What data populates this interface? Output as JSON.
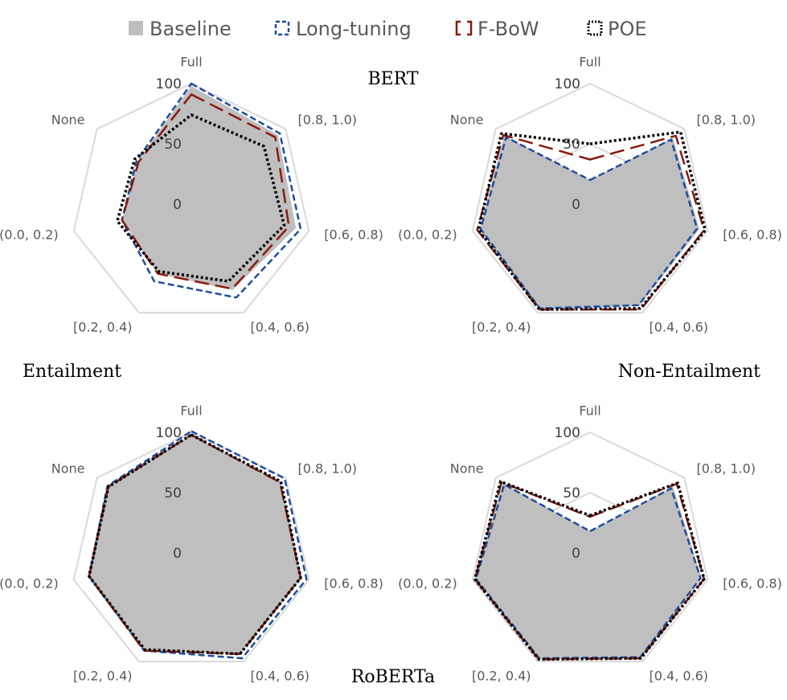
{
  "legend": [
    {
      "name": "Baseline",
      "style": "fill",
      "color": "#bfbfbf"
    },
    {
      "name": "Long-tuning",
      "style": "dash",
      "color": "#1f4e9c"
    },
    {
      "name": "F-BoW",
      "style": "longdash",
      "color": "#8b1a0e"
    },
    {
      "name": "POE",
      "style": "dot",
      "color": "#000000"
    }
  ],
  "labels": {
    "bert": "BERT",
    "roberta": "RoBERTa",
    "entailment": "Entailment",
    "non_entailment": "Non-Entailment"
  },
  "chart_data": [
    {
      "type": "radar",
      "model": "BERT",
      "class": "Entailment",
      "axes": [
        "Full",
        "[0.8, 1.0)",
        "[0.6, 0.8)",
        "[0.4, 0.6)",
        "[0.2, 0.4)",
        "(0.0, 0.2)",
        "None"
      ],
      "rlim": [
        0,
        100
      ],
      "ticks": [
        "0",
        "50",
        "100"
      ],
      "series": [
        {
          "name": "Baseline",
          "values": [
            98,
            92,
            89,
            79,
            64,
            59,
            57
          ]
        },
        {
          "name": "Long-tuning",
          "values": [
            100,
            94,
            93,
            86,
            71,
            59,
            58
          ]
        },
        {
          "name": "F-BoW",
          "values": [
            91,
            89,
            83,
            78,
            64,
            59,
            56
          ]
        },
        {
          "name": "POE",
          "values": [
            74,
            77,
            79,
            71,
            62,
            63,
            60
          ]
        }
      ]
    },
    {
      "type": "radar",
      "model": "BERT",
      "class": "Non-Entailment",
      "axes": [
        "Full",
        "[0.8, 1.0)",
        "[0.6, 0.8)",
        "[0.4, 0.6)",
        "[0.2, 0.4)",
        "(0.0, 0.2)",
        "None"
      ],
      "rlim": [
        0,
        100
      ],
      "ticks": [
        "0",
        "50",
        "100"
      ],
      "series": [
        {
          "name": "Baseline",
          "values": [
            20,
            88,
            93,
            94,
            96,
            94,
            91
          ]
        },
        {
          "name": "Long-tuning",
          "values": [
            20,
            86,
            91,
            93,
            96,
            93,
            89
          ]
        },
        {
          "name": "F-BoW",
          "values": [
            37,
            91,
            97,
            97,
            97,
            96,
            92
          ]
        },
        {
          "name": "POE",
          "values": [
            50,
            96,
            98,
            96,
            97,
            95,
            94
          ]
        }
      ]
    },
    {
      "type": "radar",
      "model": "RoBERTa",
      "class": "Entailment",
      "axes": [
        "Full",
        "[0.8, 1.0)",
        "[0.6, 0.8)",
        "[0.4, 0.6)",
        "[0.2, 0.4)",
        "(0.0, 0.2)",
        "None"
      ],
      "rlim": [
        0,
        100
      ],
      "ticks": [
        "0",
        "50",
        "100"
      ],
      "series": [
        {
          "name": "Baseline",
          "values": [
            98,
            95,
            94,
            93,
            90,
            87,
            89
          ]
        },
        {
          "name": "Long-tuning",
          "values": [
            101,
            99,
            98,
            97,
            90,
            87,
            89
          ]
        },
        {
          "name": "F-BoW",
          "values": [
            98,
            94,
            93,
            93,
            90,
            87,
            88
          ]
        },
        {
          "name": "POE",
          "values": [
            98,
            95,
            93,
            93,
            89,
            87,
            88
          ]
        }
      ]
    },
    {
      "type": "radar",
      "model": "RoBERTa",
      "class": "Non-Entailment",
      "axes": [
        "Full",
        "[0.8, 1.0)",
        "[0.6, 0.8)",
        "[0.4, 0.6)",
        "[0.2, 0.4)",
        "(0.0, 0.2)",
        "None"
      ],
      "rlim": [
        0,
        100
      ],
      "ticks": [
        "0",
        "50",
        "100"
      ],
      "series": [
        {
          "name": "Baseline",
          "values": [
            18,
            88,
            95,
            97,
            98,
            97,
            93
          ]
        },
        {
          "name": "Long-tuning",
          "values": [
            18,
            86,
            94,
            96,
            97,
            97,
            91
          ]
        },
        {
          "name": "F-BoW",
          "values": [
            30,
            92,
            97,
            97,
            98,
            98,
            94
          ]
        },
        {
          "name": "POE",
          "values": [
            31,
            93,
            97,
            97,
            98,
            98,
            95
          ]
        }
      ]
    }
  ]
}
